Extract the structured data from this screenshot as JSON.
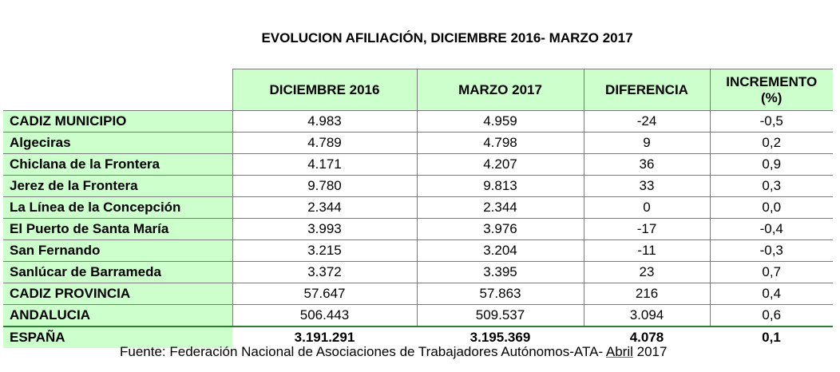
{
  "title": "EVOLUCION AFILIACIÓN, DICIEMBRE 2016- MARZO 2017",
  "table": {
    "headers": [
      "",
      "DICIEMBRE 2016",
      "MARZO 2017",
      "DIFERENCIA",
      "INCREMENTO (%)"
    ],
    "rows": [
      {
        "label": "CADIZ MUNICIPIO",
        "dic2016": "4.983",
        "mar2017": "4.959",
        "diferencia": "-24",
        "incremento": "-0,5"
      },
      {
        "label": "Algeciras",
        "dic2016": "4.789",
        "mar2017": "4.798",
        "diferencia": "9",
        "incremento": "0,2"
      },
      {
        "label": "Chiclana de la Frontera",
        "dic2016": "4.171",
        "mar2017": "4.207",
        "diferencia": "36",
        "incremento": "0,9"
      },
      {
        "label": "Jerez de la Frontera",
        "dic2016": "9.780",
        "mar2017": "9.813",
        "diferencia": "33",
        "incremento": "0,3"
      },
      {
        "label": "La Línea de la Concepción",
        "dic2016": "2.344",
        "mar2017": "2.344",
        "diferencia": "0",
        "incremento": "0,0"
      },
      {
        "label": "El Puerto de Santa María",
        "dic2016": "3.993",
        "mar2017": "3.976",
        "diferencia": "-17",
        "incremento": "-0,4"
      },
      {
        "label": "San Fernando",
        "dic2016": "3.215",
        "mar2017": "3.204",
        "diferencia": "-11",
        "incremento": "-0,3"
      },
      {
        "label": "Sanlúcar de Barrameda",
        "dic2016": "3.372",
        "mar2017": "3.395",
        "diferencia": "23",
        "incremento": "0,7"
      },
      {
        "label": "CADIZ PROVINCIA",
        "dic2016": "57.647",
        "mar2017": "57.863",
        "diferencia": "216",
        "incremento": "0,4"
      },
      {
        "label": "ANDALUCIA",
        "dic2016": "506.443",
        "mar2017": "509.537",
        "diferencia": "3.094",
        "incremento": "0,6"
      },
      {
        "label": "ESPAÑA",
        "dic2016": "3.191.291",
        "mar2017": "3.195.369",
        "diferencia": "4.078",
        "incremento": "0,1"
      }
    ]
  },
  "source": {
    "prefix": "Fuente: Federación Nacional de Asociaciones de Trabajadores Autónomos-ATA- ",
    "month": "Abril",
    "year": " 2017"
  }
}
